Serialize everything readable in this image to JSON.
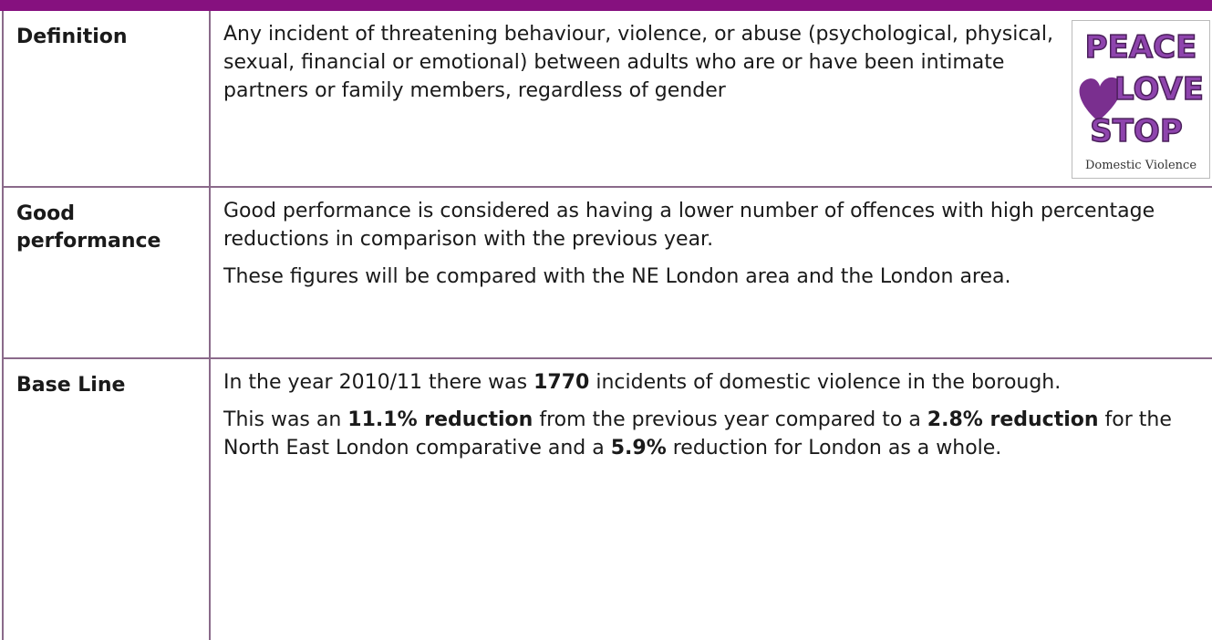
{
  "table": {
    "rows": [
      {
        "label": "Definition",
        "image": {
          "lines": [
            "PEACE",
            "LOVE",
            "STOP"
          ],
          "caption": "Domestic Violence"
        },
        "paragraphs": [
          [
            {
              "text": "Any incident of threatening behaviour, violence, or abuse (psychological, physical, sexual, financial or emotional) between adults who are or have been intimate partners or family members, regardless of gender"
            }
          ]
        ]
      },
      {
        "label": "Good performance",
        "paragraphs": [
          [
            {
              "text": "Good performance is considered as having a lower number of offences with high percentage reductions in comparison with the previous year."
            }
          ],
          [
            {
              "text": "These figures will be compared with the NE London area and the London area."
            }
          ]
        ]
      },
      {
        "label": "Base Line",
        "paragraphs": [
          [
            {
              "text": "In the year 2010/11 there was "
            },
            {
              "text": "1770",
              "bold": true
            },
            {
              "text": " incidents of domestic violence in the borough."
            }
          ],
          [
            {
              "text": "This was an "
            },
            {
              "text": "11.1% reduction",
              "bold": true
            },
            {
              "text": " from the previous year compared to a "
            },
            {
              "text": "2.8% reduction",
              "bold": true
            },
            {
              "text": " for the North East London comparative and a "
            },
            {
              "text": "5.9%",
              "bold": true
            },
            {
              "text": " reduction for London as a whole."
            }
          ]
        ]
      }
    ]
  }
}
